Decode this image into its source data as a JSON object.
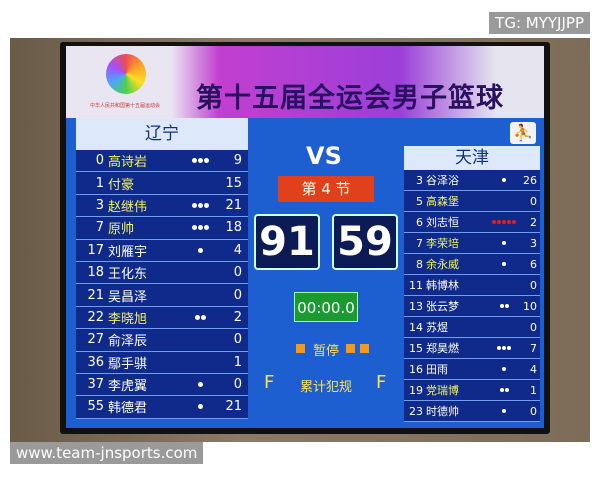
{
  "banner": {
    "title": "第十五届全运会男子篮球",
    "logo_text": "中华人民共和国第十五届运动会"
  },
  "center": {
    "vs": "VS",
    "period": "第 4 节",
    "home_score": "91",
    "away_score": "59",
    "clock": "00:00.0",
    "timeout_label": "暂停",
    "fouls_label": "累计犯规",
    "home_team_fouls": "F",
    "away_team_fouls": "F"
  },
  "colors": {
    "screen": "#1d5fd0",
    "row": "#0f2a8a",
    "period_box": "#e0401c",
    "clock_box": "#1a9a30",
    "foul_dot": "#ffffff",
    "foul_out": "#e02020",
    "on_court_name": "#f3f35a"
  },
  "home": {
    "name": "辽宁",
    "players": [
      {
        "num": "0",
        "name": "高诗岩",
        "fouls": 3,
        "pts": "9",
        "on": true
      },
      {
        "num": "1",
        "name": "付豪",
        "fouls": 0,
        "pts": "15",
        "on": true
      },
      {
        "num": "3",
        "name": "赵继伟",
        "fouls": 3,
        "pts": "21",
        "on": true
      },
      {
        "num": "7",
        "name": "原帅",
        "fouls": 3,
        "pts": "18",
        "on": true
      },
      {
        "num": "17",
        "name": "刘雁宇",
        "fouls": 1,
        "pts": "4",
        "on": false
      },
      {
        "num": "18",
        "name": "王化东",
        "fouls": 0,
        "pts": "0",
        "on": false
      },
      {
        "num": "21",
        "name": "吴昌泽",
        "fouls": 0,
        "pts": "0",
        "on": false
      },
      {
        "num": "22",
        "name": "李晓旭",
        "fouls": 2,
        "pts": "2",
        "on": true
      },
      {
        "num": "27",
        "name": "俞泽辰",
        "fouls": 0,
        "pts": "0",
        "on": false
      },
      {
        "num": "36",
        "name": "鄢手骐",
        "fouls": 0,
        "pts": "1",
        "on": false
      },
      {
        "num": "37",
        "name": "李虎翼",
        "fouls": 1,
        "pts": "0",
        "on": false
      },
      {
        "num": "55",
        "name": "韩德君",
        "fouls": 1,
        "pts": "21",
        "on": false
      }
    ]
  },
  "away": {
    "name": "天津",
    "players": [
      {
        "num": "3",
        "name": "谷泽浴",
        "fouls": 1,
        "pts": "26",
        "on": false
      },
      {
        "num": "5",
        "name": "高森堡",
        "fouls": 0,
        "pts": "0",
        "on": true
      },
      {
        "num": "6",
        "name": "刘志恒",
        "fouls": 5,
        "pts": "2",
        "on": false
      },
      {
        "num": "7",
        "name": "李荣培",
        "fouls": 1,
        "pts": "3",
        "on": true
      },
      {
        "num": "8",
        "name": "余永威",
        "fouls": 1,
        "pts": "6",
        "on": true
      },
      {
        "num": "11",
        "name": "韩博林",
        "fouls": 0,
        "pts": "0",
        "on": false
      },
      {
        "num": "13",
        "name": "张云梦",
        "fouls": 2,
        "pts": "10",
        "on": false
      },
      {
        "num": "14",
        "name": "苏煜",
        "fouls": 0,
        "pts": "0",
        "on": false
      },
      {
        "num": "15",
        "name": "郑昊燃",
        "fouls": 3,
        "pts": "7",
        "on": false
      },
      {
        "num": "16",
        "name": "田雨",
        "fouls": 1,
        "pts": "4",
        "on": false
      },
      {
        "num": "19",
        "name": "党瑞博",
        "fouls": 2,
        "pts": "1",
        "on": true
      },
      {
        "num": "23",
        "name": "时德帅",
        "fouls": 1,
        "pts": "0",
        "on": false
      }
    ]
  },
  "watermarks": {
    "top": "TG: MYYJJPP",
    "bottom": "www.team-jnsports.com"
  }
}
